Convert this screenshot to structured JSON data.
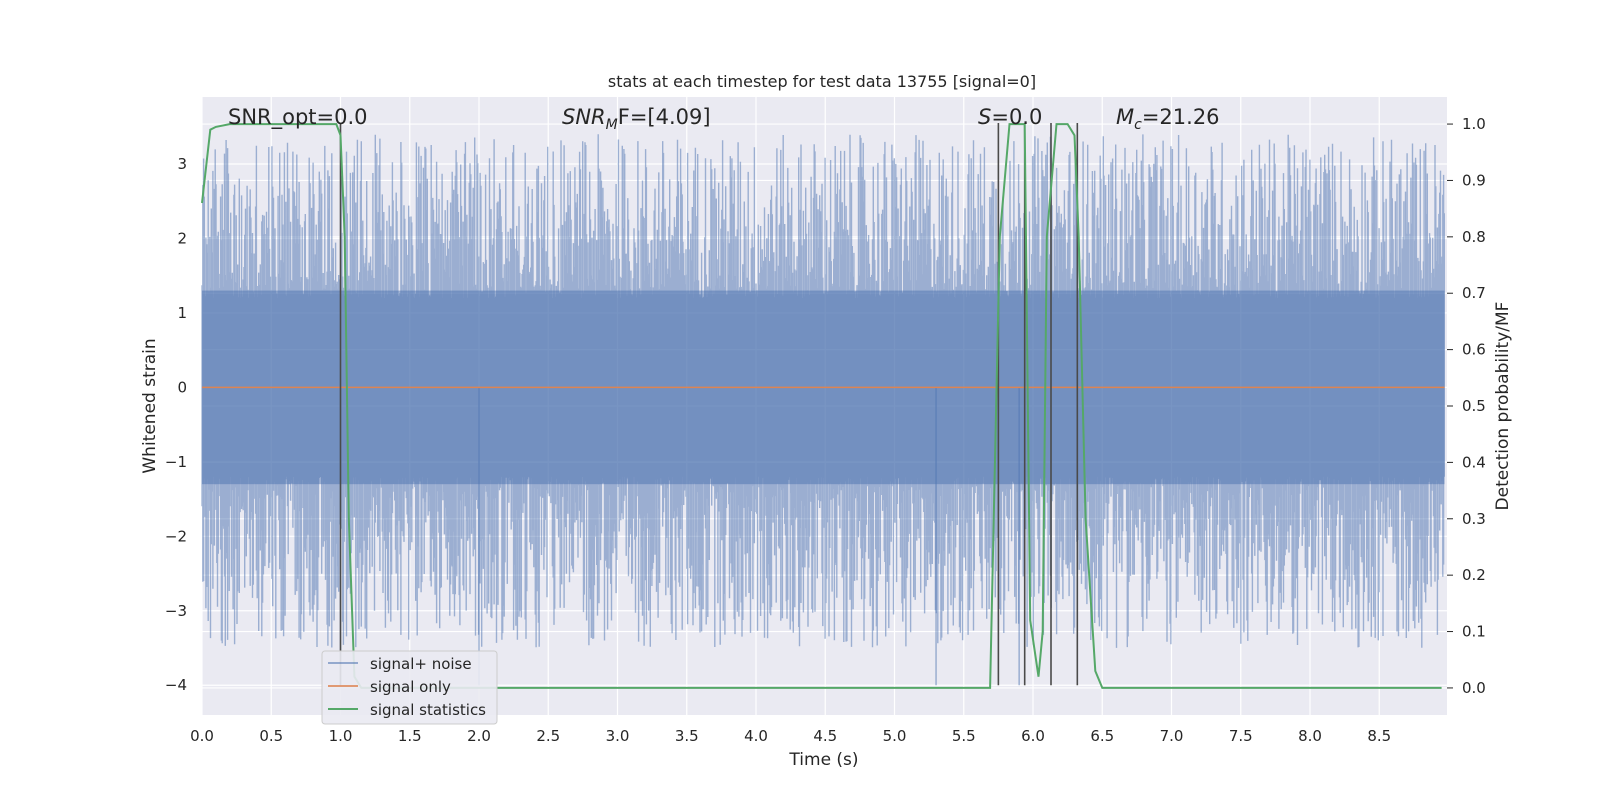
{
  "chart_data": {
    "type": "line",
    "title": "stats at each timestep for test data 13755 [signal=0]",
    "xlabel": "Time (s)",
    "ylabel": "Whitened strain",
    "ylabel_right": "Detection probability/MF",
    "xlim": [
      0.0,
      9.0
    ],
    "ylim": [
      -4.4,
      3.9
    ],
    "ylim_right": [
      -0.048,
      1.048
    ],
    "x_ticks": [
      "0.0",
      "0.5",
      "1.0",
      "1.5",
      "2.0",
      "2.5",
      "3.0",
      "3.5",
      "4.0",
      "4.5",
      "5.0",
      "5.5",
      "6.0",
      "6.5",
      "7.0",
      "7.5",
      "8.0",
      "8.5"
    ],
    "y_ticks": [
      "3",
      "2",
      "1",
      "0",
      "−1",
      "−2",
      "−3",
      "−4"
    ],
    "y_right_ticks": [
      "1.0",
      "0.9",
      "0.8",
      "0.7",
      "0.6",
      "0.5",
      "0.4",
      "0.3",
      "0.2",
      "0.1",
      "0.0"
    ],
    "grid": true,
    "legend_position": "lower-left",
    "annotations": {
      "snr_opt": "SNR_opt=0.0",
      "snr_mf_sym": "SNR",
      "snr_mf_sub": "M",
      "snr_mf_rest": "F=[4.09]",
      "s_sym": "S",
      "s_rest": "=0.0",
      "mc_sym": "M",
      "mc_sub": "c",
      "mc_rest": "=21.26"
    },
    "series": [
      {
        "name": "signal+ noise",
        "color": "#4c72b0",
        "style": "noise-band",
        "x_range": [
          0.0,
          9.0
        ],
        "bulk_range": [
          -1.3,
          1.3
        ],
        "envelope_range": [
          -3.5,
          3.4
        ]
      },
      {
        "name": "signal only",
        "color": "#dd8452",
        "x": [
          0.0,
          9.0
        ],
        "y": [
          0.0,
          0.0
        ]
      },
      {
        "name": "signal statistics",
        "color": "#55a868",
        "axis": "right",
        "x": [
          0.0,
          0.06,
          0.1,
          0.2,
          0.9,
          0.97,
          1.0,
          1.03,
          1.06,
          1.1,
          1.15,
          5.69,
          5.76,
          5.83,
          5.88,
          5.94,
          5.98,
          6.04,
          6.07,
          6.1,
          6.17,
          6.25,
          6.3,
          6.33,
          6.38,
          6.45,
          6.5,
          8.95
        ],
        "y": [
          0.86,
          0.99,
          0.995,
          1.0,
          1.0,
          1.0,
          0.98,
          0.8,
          0.3,
          0.02,
          0.0,
          0.0,
          0.8,
          1.0,
          1.0,
          1.0,
          0.12,
          0.02,
          0.1,
          0.8,
          1.0,
          1.0,
          0.98,
          0.8,
          0.3,
          0.03,
          0.0,
          0.0
        ]
      }
    ],
    "vertical_lines_x": [
      1.0,
      5.75,
      5.94,
      6.13,
      6.32
    ],
    "vertical_lines_y_range": [
      -4.0,
      3.55
    ],
    "vertical_line_color": "#4a4a4a"
  }
}
